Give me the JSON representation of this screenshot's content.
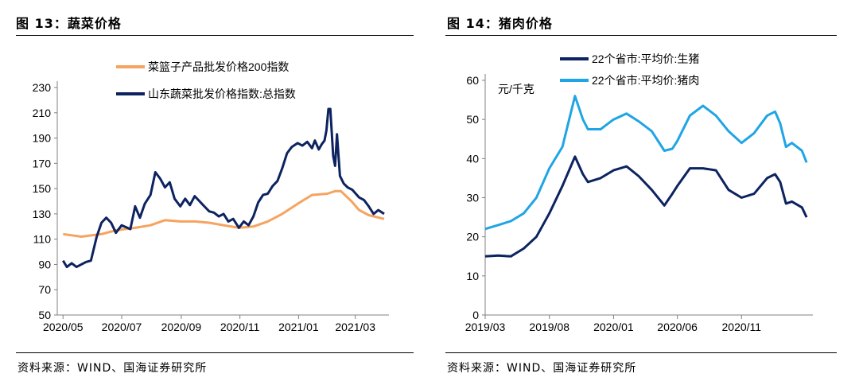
{
  "figures": {
    "left": {
      "title": "图 13：蔬菜价格",
      "source": "资料来源：WIND、国海证券研究所"
    },
    "right": {
      "title": "图 14：猪肉价格",
      "source": "资料来源：WIND、国海证券研究所"
    }
  },
  "chart_data": [
    {
      "type": "line",
      "title": "",
      "xlabel": "",
      "ylabel": "",
      "ylim": [
        50,
        230
      ],
      "yticks": [
        "50",
        "70",
        "90",
        "110",
        "130",
        "150",
        "170",
        "190",
        "210",
        "230"
      ],
      "xticks": [
        "2020/05",
        "2020/07",
        "2020/09",
        "2020/11",
        "2021/01",
        "2021/03"
      ],
      "legend_position": "top-center",
      "grid": false,
      "series": [
        {
          "name": "菜篮子产品批发价格200指数",
          "color": "#F4A460",
          "points": [
            [
              "2020-05-01",
              114
            ],
            [
              "2020-05-20",
              112
            ],
            [
              "2020-06-10",
              114
            ],
            [
              "2020-06-25",
              117
            ],
            [
              "2020-07-15",
              119
            ],
            [
              "2020-07-31",
              121
            ],
            [
              "2020-08-15",
              125
            ],
            [
              "2020-08-31",
              124
            ],
            [
              "2020-09-15",
              124
            ],
            [
              "2020-09-30",
              123
            ],
            [
              "2020-10-15",
              121
            ],
            [
              "2020-10-31",
              119
            ],
            [
              "2020-11-15",
              120
            ],
            [
              "2020-11-30",
              124
            ],
            [
              "2020-12-15",
              130
            ],
            [
              "2020-12-31",
              138
            ],
            [
              "2021-01-15",
              145
            ],
            [
              "2021-01-31",
              146
            ],
            [
              "2021-02-08",
              148
            ],
            [
              "2021-02-14",
              148
            ],
            [
              "2021-02-25",
              140
            ],
            [
              "2021-03-05",
              133
            ],
            [
              "2021-03-15",
              129
            ],
            [
              "2021-03-31",
              126
            ]
          ]
        },
        {
          "name": "山东蔬菜批发价格指数:总指数",
          "color": "#0D2360",
          "points": [
            [
              "2020-05-01",
              93
            ],
            [
              "2020-05-05",
              88
            ],
            [
              "2020-05-10",
              91
            ],
            [
              "2020-05-15",
              88
            ],
            [
              "2020-05-20",
              90
            ],
            [
              "2020-05-25",
              92
            ],
            [
              "2020-05-30",
              93
            ],
            [
              "2020-06-05",
              112
            ],
            [
              "2020-06-10",
              123
            ],
            [
              "2020-06-15",
              127
            ],
            [
              "2020-06-20",
              123
            ],
            [
              "2020-06-25",
              115
            ],
            [
              "2020-07-01",
              121
            ],
            [
              "2020-07-10",
              118
            ],
            [
              "2020-07-15",
              136
            ],
            [
              "2020-07-20",
              127
            ],
            [
              "2020-07-25",
              138
            ],
            [
              "2020-07-31",
              145
            ],
            [
              "2020-08-05",
              163
            ],
            [
              "2020-08-10",
              158
            ],
            [
              "2020-08-15",
              151
            ],
            [
              "2020-08-20",
              155
            ],
            [
              "2020-08-25",
              142
            ],
            [
              "2020-08-31",
              136
            ],
            [
              "2020-09-05",
              142
            ],
            [
              "2020-09-10",
              137
            ],
            [
              "2020-09-15",
              144
            ],
            [
              "2020-09-20",
              140
            ],
            [
              "2020-09-25",
              136
            ],
            [
              "2020-09-30",
              132
            ],
            [
              "2020-10-05",
              131
            ],
            [
              "2020-10-10",
              128
            ],
            [
              "2020-10-15",
              130
            ],
            [
              "2020-10-20",
              124
            ],
            [
              "2020-10-25",
              126
            ],
            [
              "2020-10-31",
              119
            ],
            [
              "2020-11-05",
              124
            ],
            [
              "2020-11-10",
              121
            ],
            [
              "2020-11-15",
              128
            ],
            [
              "2020-11-20",
              139
            ],
            [
              "2020-11-25",
              145
            ],
            [
              "2020-11-30",
              146
            ],
            [
              "2020-12-05",
              152
            ],
            [
              "2020-12-10",
              156
            ],
            [
              "2020-12-15",
              166
            ],
            [
              "2020-12-20",
              178
            ],
            [
              "2020-12-25",
              183
            ],
            [
              "2020-12-31",
              186
            ],
            [
              "2021-01-05",
              184
            ],
            [
              "2021-01-10",
              187
            ],
            [
              "2021-01-15",
              182
            ],
            [
              "2021-01-18",
              188
            ],
            [
              "2021-01-22",
              181
            ],
            [
              "2021-01-25",
              185
            ],
            [
              "2021-01-28",
              188
            ],
            [
              "2021-01-30",
              196
            ],
            [
              "2021-02-01",
              213
            ],
            [
              "2021-02-03",
              213
            ],
            [
              "2021-02-06",
              176
            ],
            [
              "2021-02-08",
              168
            ],
            [
              "2021-02-10",
              193
            ],
            [
              "2021-02-13",
              160
            ],
            [
              "2021-02-17",
              154
            ],
            [
              "2021-02-21",
              151
            ],
            [
              "2021-02-26",
              149
            ],
            [
              "2021-03-05",
              143
            ],
            [
              "2021-03-10",
              141
            ],
            [
              "2021-03-15",
              136
            ],
            [
              "2021-03-20",
              130
            ],
            [
              "2021-03-25",
              133
            ],
            [
              "2021-03-31",
              130
            ]
          ]
        }
      ]
    },
    {
      "type": "line",
      "title": "",
      "xlabel": "",
      "ylabel": "元/千克",
      "ylim": [
        0,
        60
      ],
      "yticks": [
        "0",
        "10",
        "20",
        "30",
        "40",
        "50",
        "60"
      ],
      "xticks": [
        "2019/03",
        "2019/08",
        "2020/01",
        "2020/06",
        "2020/11"
      ],
      "legend_position": "top-center",
      "grid": false,
      "series": [
        {
          "name": "22个省市:平均价:生猪",
          "color": "#0D2360",
          "points": [
            [
              "2019-03-01",
              15.0
            ],
            [
              "2019-04-01",
              15.2
            ],
            [
              "2019-05-01",
              15.0
            ],
            [
              "2019-06-01",
              17.0
            ],
            [
              "2019-07-01",
              20.0
            ],
            [
              "2019-08-01",
              26.0
            ],
            [
              "2019-09-01",
              33.0
            ],
            [
              "2019-10-01",
              40.5
            ],
            [
              "2019-10-20",
              36.0
            ],
            [
              "2019-11-01",
              34.0
            ],
            [
              "2019-12-01",
              35.0
            ],
            [
              "2020-01-01",
              37.0
            ],
            [
              "2020-02-01",
              38.0
            ],
            [
              "2020-03-01",
              35.5
            ],
            [
              "2020-04-01",
              32.0
            ],
            [
              "2020-05-01",
              28.0
            ],
            [
              "2020-05-20",
              31.0
            ],
            [
              "2020-06-01",
              33.0
            ],
            [
              "2020-07-01",
              37.5
            ],
            [
              "2020-08-01",
              37.5
            ],
            [
              "2020-09-01",
              37.0
            ],
            [
              "2020-10-01",
              32.0
            ],
            [
              "2020-11-01",
              30.0
            ],
            [
              "2020-12-01",
              31.0
            ],
            [
              "2021-01-01",
              35.0
            ],
            [
              "2021-01-20",
              36.0
            ],
            [
              "2021-02-01",
              34.0
            ],
            [
              "2021-02-15",
              28.5
            ],
            [
              "2021-03-01",
              29.0
            ],
            [
              "2021-03-25",
              27.5
            ],
            [
              "2021-04-05",
              25.0
            ]
          ]
        },
        {
          "name": "22个省市:平均价:猪肉",
          "color": "#1FA5E5",
          "points": [
            [
              "2019-03-01",
              22.0
            ],
            [
              "2019-04-01",
              23.0
            ],
            [
              "2019-05-01",
              24.0
            ],
            [
              "2019-06-01",
              26.0
            ],
            [
              "2019-07-01",
              30.0
            ],
            [
              "2019-08-01",
              37.5
            ],
            [
              "2019-09-01",
              43.0
            ],
            [
              "2019-10-01",
              56.0
            ],
            [
              "2019-10-20",
              50.0
            ],
            [
              "2019-11-01",
              47.5
            ],
            [
              "2019-12-01",
              47.5
            ],
            [
              "2020-01-01",
              50.0
            ],
            [
              "2020-02-01",
              51.5
            ],
            [
              "2020-03-01",
              49.5
            ],
            [
              "2020-04-01",
              47.0
            ],
            [
              "2020-05-01",
              42.0
            ],
            [
              "2020-05-20",
              42.5
            ],
            [
              "2020-06-01",
              44.5
            ],
            [
              "2020-07-01",
              51.0
            ],
            [
              "2020-08-01",
              53.5
            ],
            [
              "2020-09-01",
              51.0
            ],
            [
              "2020-10-01",
              47.0
            ],
            [
              "2020-11-01",
              44.0
            ],
            [
              "2020-12-01",
              46.5
            ],
            [
              "2021-01-01",
              51.0
            ],
            [
              "2021-01-20",
              52.0
            ],
            [
              "2021-02-01",
              49.0
            ],
            [
              "2021-02-15",
              43.0
            ],
            [
              "2021-03-01",
              44.0
            ],
            [
              "2021-03-25",
              42.0
            ],
            [
              "2021-04-05",
              39.0
            ]
          ]
        }
      ]
    }
  ]
}
